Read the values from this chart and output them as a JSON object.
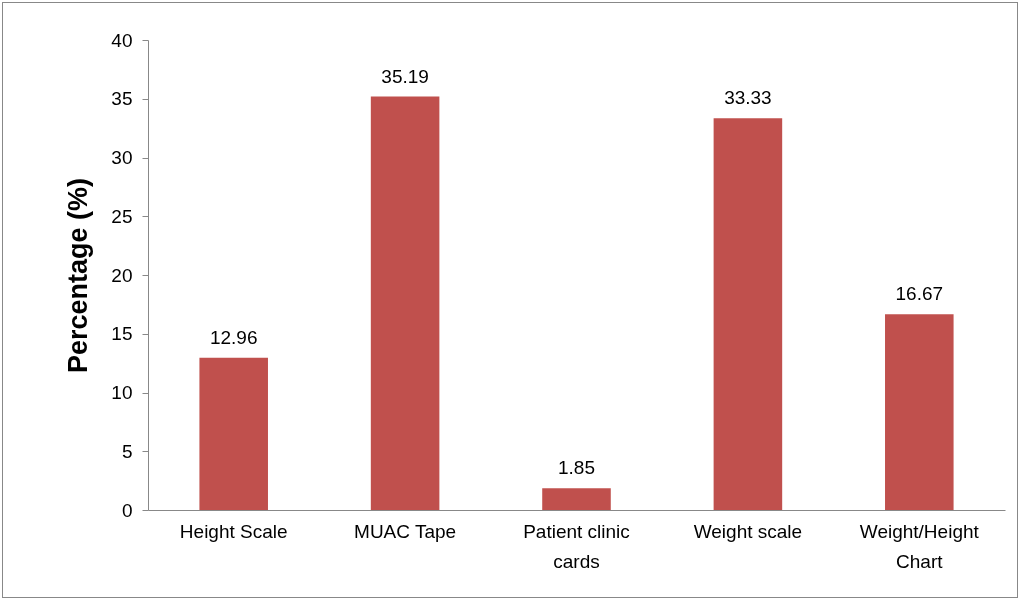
{
  "chart_data": {
    "type": "bar",
    "ylabel": "Percentage (%)",
    "categories": [
      "Height Scale",
      "MUAC Tape",
      "Patient clinic cards",
      "Weight scale",
      "Weight/Height Chart"
    ],
    "values": [
      12.96,
      35.19,
      1.85,
      33.33,
      16.67
    ],
    "color": "#c0504d",
    "ylim": [
      0,
      40
    ],
    "yticks": [
      0,
      5,
      10,
      15,
      20,
      25,
      30,
      35,
      40
    ],
    "data_labels": true,
    "grid": false
  }
}
